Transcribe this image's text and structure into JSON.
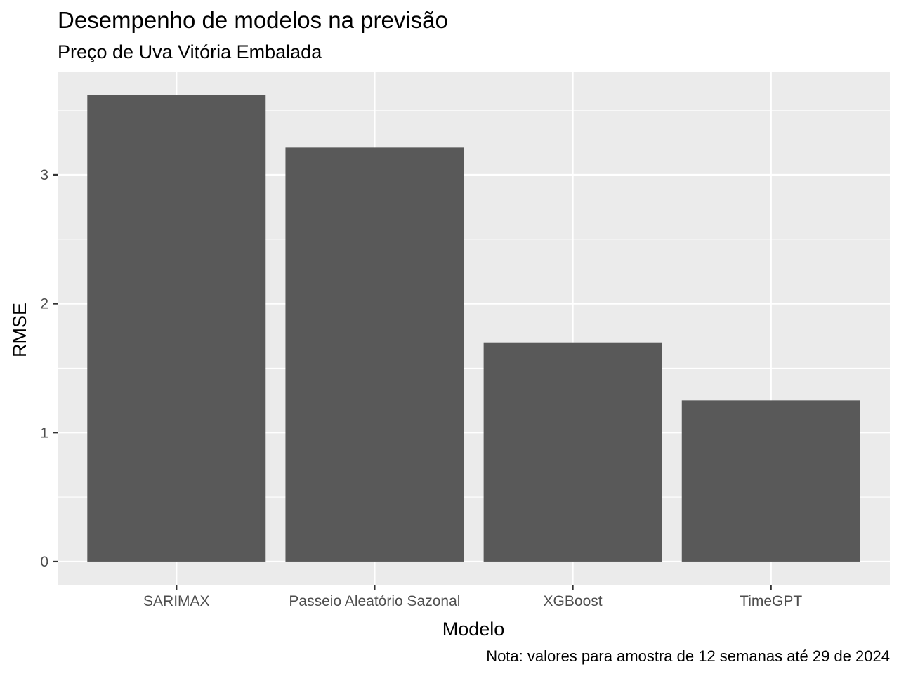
{
  "chart_data": {
    "type": "bar",
    "title": "Desempenho de modelos na previsão",
    "subtitle": "Preço de Uva Vitória Embalada",
    "xlabel": "Modelo",
    "ylabel": "RMSE",
    "caption": "Nota: valores para amostra de 12 semanas até 29 de 2024",
    "categories": [
      "SARIMAX",
      "Passeio Aleatório Sazonal",
      "XGBoost",
      "TimeGPT"
    ],
    "values": [
      3.62,
      3.21,
      1.7,
      1.25
    ],
    "y_ticks": [
      0,
      1,
      2,
      3
    ],
    "y_tick_labels": [
      "0",
      "1",
      "2",
      "3"
    ],
    "ylim": [
      -0.18,
      3.8
    ],
    "grid": true,
    "colors": {
      "bar": "#595959",
      "panel_background": "#ebebeb",
      "grid": "#ffffff",
      "tick_text": "#4d4d4d",
      "tick_mark": "#333333"
    }
  }
}
